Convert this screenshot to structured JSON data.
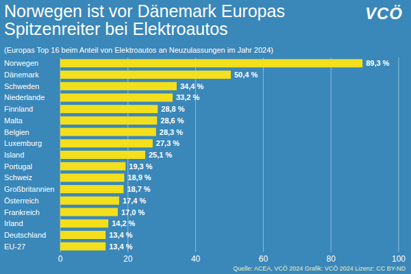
{
  "chart_data": {
    "type": "bar",
    "title": "Norwegen ist vor Dänemark Europas Spitzenreiter bei Elektroautos",
    "subtitle": "(Europas Top 16 beim Anteil von Elektroautos an Neuzulassungen im Jahr 2024)",
    "logo": "VCÖ",
    "source": "Quelle: ACEA, VCÖ 2024 Grafik: VCÖ 2024 Lizenz: CC BY-ND",
    "orientation": "horizontal",
    "categories": [
      "Norwegen",
      "Dänemark",
      "Schweden",
      "Niederlande",
      "Finnland",
      "Malta",
      "Belgien",
      "Luxemburg",
      "Island",
      "Portugal",
      "Schweiz",
      "Großbritannien",
      "Österreich",
      "Frankreich",
      "Irland",
      "Deutschland",
      "EU-27"
    ],
    "values": [
      89.3,
      50.4,
      34.4,
      33.2,
      28.8,
      28.6,
      28.3,
      27.3,
      25.1,
      19.3,
      18.9,
      18.7,
      17.4,
      17.0,
      14.2,
      13.4,
      13.4
    ],
    "value_labels": [
      "89,3 %",
      "50,4 %",
      "34,4 %",
      "33,2 %",
      "28,8 %",
      "28,6 %",
      "28,3 %",
      "27,3 %",
      "25,1 %",
      "19,3 %",
      "18,9 %",
      "18,7 %",
      "17,4 %",
      "17,0 %",
      "14,2 %",
      "13,4 %",
      "13,4 %"
    ],
    "color": "#f3df1c",
    "xlim": [
      0,
      100
    ],
    "xticks": [
      0,
      20,
      40,
      60,
      80,
      100
    ],
    "grid": true,
    "data_labels": true
  }
}
